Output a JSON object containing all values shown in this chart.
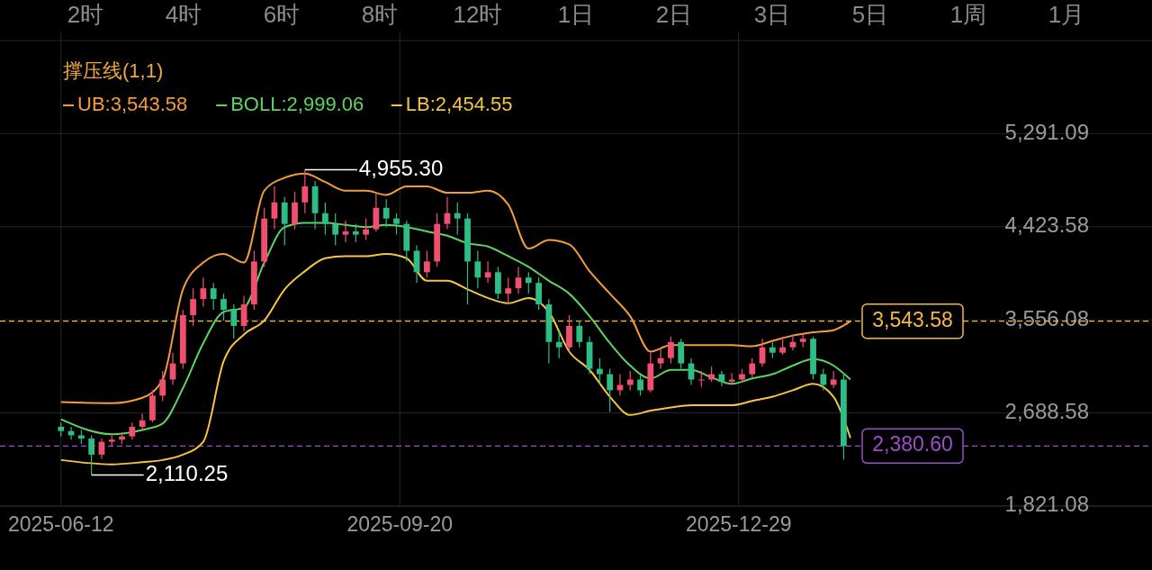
{
  "chart_data": {
    "type": "candlestick",
    "legend_title": "撑压线(1,1)",
    "legend": "top left",
    "grid": true,
    "annotations": [
      "2时",
      "4时",
      "6时",
      "8时",
      "12时",
      "1日",
      "2日",
      "3日",
      "5日",
      "1周",
      "1月",
      {
        "text": "4,955.30",
        "x": "2025-08-23",
        "y": 4955.3
      },
      {
        "text": "2,110.25",
        "x": "2025-06-21",
        "y": 2110.25
      }
    ],
    "xlim": [
      "2025-05-25",
      "2026-04-30"
    ],
    "xticks": [
      {
        "value": "2025-06-12",
        "label": "2025-06-12"
      },
      {
        "value": "2025-09-20",
        "label": "2025-09-20"
      },
      {
        "value": "2025-12-29",
        "label": "2025-12-29"
      }
    ],
    "ylim": [
      1821.08,
      6158.6
    ],
    "yticks": [
      {
        "value": 1821.08,
        "label": "1,821.08"
      },
      {
        "value": 2688.58,
        "label": "2,688.58"
      },
      {
        "value": 3556.08,
        "label": "3,556.08"
      },
      {
        "value": 4423.58,
        "label": "4,423.58"
      },
      {
        "value": 5291.09,
        "label": "5,291.09"
      }
    ],
    "colors": [
      "#2ebd85",
      "#2ebd85",
      "#2ebd85",
      "#2ebd85",
      "#f0506e",
      "#f0506e",
      "#f0506e",
      "#f0506e",
      "#f0506e",
      "#f0506e",
      "#f0506e",
      "#f0506e",
      "#f0506e",
      "#f0506e",
      "#f0506e",
      "#2ebd85",
      "#2ebd85",
      "#2ebd85",
      "#f0506e",
      "#f0506e",
      "#f0506e",
      "#f0506e",
      "#2ebd85",
      "#f0506e",
      "#f0506e",
      "#2ebd85",
      "#2ebd85",
      "#2ebd85",
      "#f0506e",
      "#2ebd85",
      "#f0506e",
      "#f0506e",
      "#2ebd85",
      "#2ebd85",
      "#2ebd85",
      "#2ebd85",
      "#f0506e",
      "#f0506e",
      "#f0506e",
      "#2ebd85",
      "#2ebd85",
      "#2ebd85",
      "#f0506e",
      "#2ebd85",
      "#f0506e",
      "#f0506e",
      "#2ebd85",
      "#2ebd85",
      "#2ebd85",
      "#2ebd85",
      "#f0506e",
      "#2ebd85",
      "#2ebd85",
      "#2ebd85",
      "#2ebd85",
      "#f0506e",
      "#f0506e",
      "#2ebd85",
      "#f0506e",
      "#f0506e",
      "#f0506e",
      "#2ebd85",
      "#2ebd85",
      "#f0506e",
      "#f0506e",
      "#2ebd85",
      "#f0506e",
      "#f0506e",
      "#f0506e",
      "#f0506e",
      "#2ebd85",
      "#f0506e",
      "#f0506e",
      "#f0506e",
      "#2ebd85",
      "#2ebd85",
      "#f0506e",
      "#2ebd85"
    ],
    "x": [
      "2025-06-12",
      "2025-06-15",
      "2025-06-18",
      "2025-06-21",
      "2025-06-24",
      "2025-06-27",
      "2025-06-30",
      "2025-07-03",
      "2025-07-06",
      "2025-07-09",
      "2025-07-12",
      "2025-07-15",
      "2025-07-18",
      "2025-07-21",
      "2025-07-24",
      "2025-07-27",
      "2025-07-30",
      "2025-08-02",
      "2025-08-05",
      "2025-08-08",
      "2025-08-11",
      "2025-08-14",
      "2025-08-17",
      "2025-08-20",
      "2025-08-23",
      "2025-08-26",
      "2025-08-29",
      "2025-09-01",
      "2025-09-04",
      "2025-09-07",
      "2025-09-10",
      "2025-09-13",
      "2025-09-16",
      "2025-09-19",
      "2025-09-22",
      "2025-09-25",
      "2025-09-28",
      "2025-10-01",
      "2025-10-04",
      "2025-10-07",
      "2025-10-10",
      "2025-10-13",
      "2025-10-16",
      "2025-10-19",
      "2025-10-22",
      "2025-10-25",
      "2025-10-28",
      "2025-10-31",
      "2025-11-03",
      "2025-11-06",
      "2025-11-09",
      "2025-11-12",
      "2025-11-15",
      "2025-11-18",
      "2025-11-21",
      "2025-11-24",
      "2025-11-27",
      "2025-11-30",
      "2025-12-03",
      "2025-12-06",
      "2025-12-09",
      "2025-12-12",
      "2025-12-15",
      "2025-12-18",
      "2025-12-21",
      "2025-12-24",
      "2025-12-27",
      "2025-12-30",
      "2026-01-02",
      "2026-01-05",
      "2026-01-08",
      "2026-01-11",
      "2026-01-14",
      "2026-01-17",
      "2026-01-20",
      "2026-01-23",
      "2026-01-26",
      "2026-01-29"
    ],
    "ohlc": [
      [
        2560,
        2600,
        2470,
        2520
      ],
      [
        2520,
        2560,
        2440,
        2480
      ],
      [
        2480,
        2530,
        2400,
        2450
      ],
      [
        2450,
        2480,
        2110.25,
        2300
      ],
      [
        2300,
        2450,
        2260,
        2420
      ],
      [
        2420,
        2480,
        2380,
        2440
      ],
      [
        2440,
        2510,
        2400,
        2470
      ],
      [
        2470,
        2600,
        2440,
        2560
      ],
      [
        2560,
        2680,
        2520,
        2620
      ],
      [
        2620,
        2900,
        2600,
        2850
      ],
      [
        2850,
        3080,
        2800,
        3000
      ],
      [
        3000,
        3250,
        2950,
        3150
      ],
      [
        3150,
        3650,
        3100,
        3600
      ],
      [
        3600,
        3850,
        3500,
        3750
      ],
      [
        3750,
        3950,
        3680,
        3850
      ],
      [
        3850,
        3900,
        3650,
        3750
      ],
      [
        3750,
        3800,
        3550,
        3650
      ],
      [
        3650,
        3700,
        3380,
        3500
      ],
      [
        3500,
        3780,
        3450,
        3700
      ],
      [
        3700,
        4200,
        3650,
        4100
      ],
      [
        4100,
        4600,
        4050,
        4500
      ],
      [
        4500,
        4800,
        4400,
        4650
      ],
      [
        4650,
        4700,
        4250,
        4450
      ],
      [
        4450,
        4750,
        4400,
        4650
      ],
      [
        4650,
        4955.3,
        4550,
        4800
      ],
      [
        4800,
        4850,
        4400,
        4550
      ],
      [
        4550,
        4650,
        4350,
        4450
      ],
      [
        4450,
        4550,
        4250,
        4350
      ],
      [
        4350,
        4480,
        4280,
        4380
      ],
      [
        4380,
        4450,
        4280,
        4350
      ],
      [
        4350,
        4500,
        4300,
        4400
      ],
      [
        4400,
        4750,
        4380,
        4600
      ],
      [
        4600,
        4680,
        4420,
        4500
      ],
      [
        4500,
        4550,
        4350,
        4450
      ],
      [
        4450,
        4480,
        4100,
        4200
      ],
      [
        4200,
        4250,
        3900,
        4000
      ],
      [
        4000,
        4200,
        3950,
        4100
      ],
      [
        4100,
        4550,
        4050,
        4450
      ],
      [
        4450,
        4700,
        4400,
        4550
      ],
      [
        4550,
        4650,
        4350,
        4500
      ],
      [
        4500,
        4550,
        3700,
        4100
      ],
      [
        4100,
        4200,
        3850,
        3950
      ],
      [
        3950,
        4100,
        3900,
        4000
      ],
      [
        4000,
        4050,
        3750,
        3800
      ],
      [
        3800,
        3950,
        3700,
        3850
      ],
      [
        3850,
        4050,
        3800,
        3950
      ],
      [
        3950,
        4000,
        3800,
        3900
      ],
      [
        3900,
        3950,
        3650,
        3700
      ],
      [
        3700,
        3750,
        3150,
        3350
      ],
      [
        3350,
        3450,
        3200,
        3300
      ],
      [
        3300,
        3600,
        3250,
        3500
      ],
      [
        3500,
        3550,
        3300,
        3350
      ],
      [
        3350,
        3400,
        3050,
        3100
      ],
      [
        3100,
        3200,
        2950,
        3050
      ],
      [
        3050,
        3100,
        2700,
        2900
      ],
      [
        2900,
        3050,
        2850,
        2950
      ],
      [
        2950,
        3080,
        2900,
        3000
      ],
      [
        3000,
        3050,
        2850,
        2900
      ],
      [
        2900,
        3250,
        2880,
        3150
      ],
      [
        3150,
        3300,
        3100,
        3200
      ],
      [
        3200,
        3400,
        3150,
        3350
      ],
      [
        3350,
        3380,
        3100,
        3150
      ],
      [
        3150,
        3200,
        2950,
        3000
      ],
      [
        3000,
        3080,
        2930,
        3000
      ],
      [
        3000,
        3120,
        2980,
        3050
      ],
      [
        3050,
        3080,
        2940,
        2980
      ],
      [
        2980,
        3060,
        2950,
        3000
      ],
      [
        3000,
        3100,
        2970,
        3050
      ],
      [
        3050,
        3200,
        3020,
        3150
      ],
      [
        3150,
        3380,
        3120,
        3300
      ],
      [
        3300,
        3350,
        3200,
        3250
      ],
      [
        3250,
        3400,
        3230,
        3300
      ],
      [
        3300,
        3420,
        3270,
        3350
      ],
      [
        3350,
        3420,
        3300,
        3380
      ],
      [
        3380,
        3400,
        3000,
        3050
      ],
      [
        3050,
        3100,
        2900,
        2950
      ],
      [
        2950,
        3080,
        2920,
        3000
      ],
      [
        3000,
        3050,
        2255,
        2380.6
      ]
    ],
    "series": [
      {
        "type": "line",
        "name": "UB:3,543.58",
        "color": "#f39c3c",
        "x": [
          "2025-06-12",
          "2025-06-27",
          "2025-07-06",
          "2025-07-12",
          "2025-07-18",
          "2025-07-24",
          "2025-07-30",
          "2025-08-05",
          "2025-08-11",
          "2025-08-17",
          "2025-08-23",
          "2025-08-29",
          "2025-09-04",
          "2025-09-10",
          "2025-09-16",
          "2025-09-22",
          "2025-09-28",
          "2025-10-04",
          "2025-10-10",
          "2025-10-16",
          "2025-10-22",
          "2025-10-28",
          "2025-11-03",
          "2025-11-09",
          "2025-11-15",
          "2025-11-21",
          "2025-11-27",
          "2025-12-03",
          "2025-12-09",
          "2025-12-15",
          "2025-12-21",
          "2025-12-27",
          "2026-01-02",
          "2026-01-08",
          "2026-01-14",
          "2026-01-20",
          "2026-01-26",
          "2026-01-31"
        ],
        "values": [
          2790,
          2780,
          2830,
          3000,
          3840,
          4090,
          4170,
          4090,
          4760,
          4880,
          4920,
          4840,
          4760,
          4760,
          4720,
          4800,
          4800,
          4740,
          4740,
          4760,
          4630,
          4220,
          4300,
          4260,
          4010,
          3800,
          3590,
          3260,
          3320,
          3320,
          3320,
          3320,
          3310,
          3360,
          3410,
          3440,
          3460,
          3543.58
        ]
      },
      {
        "type": "line",
        "name": "BOLL:2,999.06",
        "color": "#5fd35f",
        "x": [
          "2025-06-12",
          "2025-06-27",
          "2025-07-06",
          "2025-07-12",
          "2025-07-18",
          "2025-07-24",
          "2025-07-30",
          "2025-08-05",
          "2025-08-11",
          "2025-08-17",
          "2025-08-23",
          "2025-08-29",
          "2025-09-04",
          "2025-09-10",
          "2025-09-16",
          "2025-09-22",
          "2025-09-28",
          "2025-10-04",
          "2025-10-10",
          "2025-10-16",
          "2025-10-22",
          "2025-10-28",
          "2025-11-03",
          "2025-11-09",
          "2025-11-15",
          "2025-11-21",
          "2025-11-27",
          "2025-12-03",
          "2025-12-09",
          "2025-12-15",
          "2025-12-21",
          "2025-12-27",
          "2026-01-02",
          "2026-01-08",
          "2026-01-14",
          "2026-01-20",
          "2026-01-26",
          "2026-01-31"
        ],
        "values": [
          2630,
          2490,
          2530,
          2590,
          2920,
          3340,
          3630,
          3670,
          4090,
          4420,
          4460,
          4460,
          4440,
          4420,
          4440,
          4420,
          4380,
          4340,
          4270,
          4240,
          4150,
          4050,
          3920,
          3800,
          3590,
          3340,
          3130,
          3010,
          3090,
          3090,
          3020,
          2960,
          3010,
          3050,
          3130,
          3190,
          3130,
          2999.06
        ]
      },
      {
        "type": "line",
        "name": "LB:2,454.55",
        "color": "#f5c542",
        "x": [
          "2025-06-12",
          "2025-06-27",
          "2025-07-06",
          "2025-07-12",
          "2025-07-18",
          "2025-07-24",
          "2025-07-30",
          "2025-08-05",
          "2025-08-11",
          "2025-08-17",
          "2025-08-23",
          "2025-08-29",
          "2025-09-04",
          "2025-09-10",
          "2025-09-16",
          "2025-09-22",
          "2025-09-28",
          "2025-10-04",
          "2025-10-10",
          "2025-10-16",
          "2025-10-22",
          "2025-10-28",
          "2025-11-03",
          "2025-11-09",
          "2025-11-15",
          "2025-11-21",
          "2025-11-27",
          "2025-12-03",
          "2025-12-09",
          "2025-12-15",
          "2025-12-21",
          "2025-12-27",
          "2026-01-02",
          "2026-01-08",
          "2026-01-14",
          "2026-01-20",
          "2026-01-26",
          "2026-01-31"
        ],
        "values": [
          2250,
          2210,
          2230,
          2250,
          2300,
          2420,
          3170,
          3420,
          3550,
          3840,
          4010,
          4130,
          4150,
          4150,
          4170,
          4130,
          3920,
          3920,
          3840,
          3760,
          3710,
          3760,
          3630,
          3260,
          3090,
          2840,
          2670,
          2710,
          2740,
          2760,
          2760,
          2760,
          2800,
          2840,
          2900,
          2960,
          2840,
          2454.55
        ]
      }
    ],
    "ref_lines": [
      {
        "axis": "y",
        "value": 3543.58,
        "label": "3,543.58",
        "color": "#f5b942",
        "line_style": "dashed"
      },
      {
        "axis": "y",
        "value": 2380.6,
        "label": "2,380.60",
        "color": "#9b4dca",
        "line_style": "dashed"
      }
    ]
  }
}
